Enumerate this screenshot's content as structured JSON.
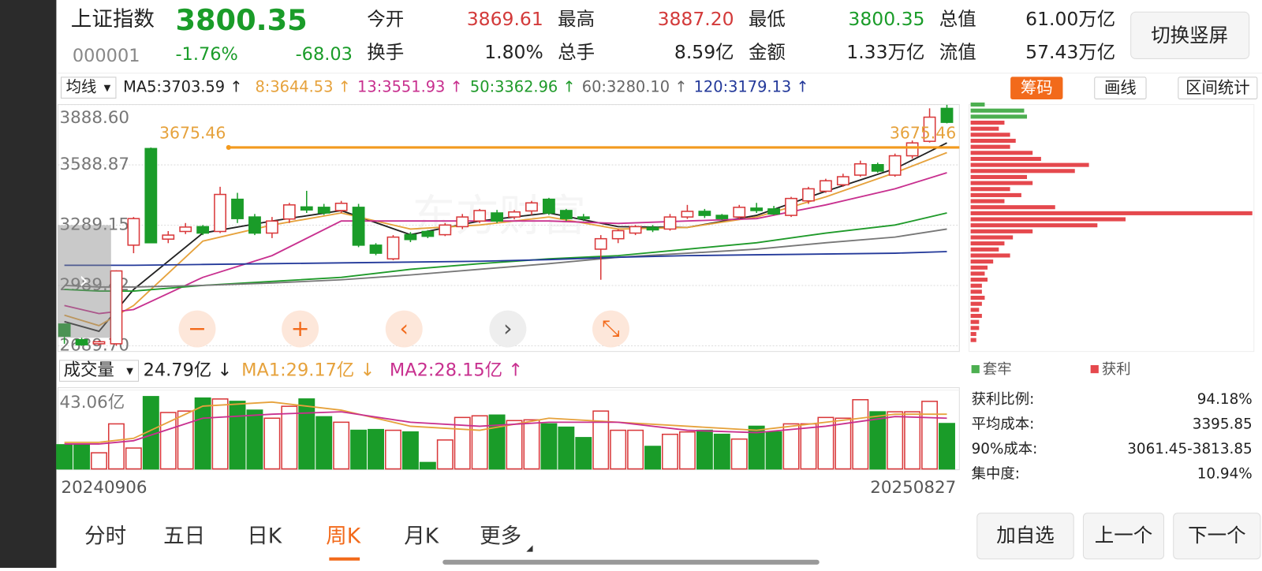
{
  "header": {
    "name": "上证指数",
    "price": "3800.35",
    "code": "000001",
    "change_pct": "-1.76%",
    "change": "-68.03",
    "stats": [
      {
        "label": "今开",
        "value": "3869.61",
        "color": "#d33a3a"
      },
      {
        "label": "最高",
        "value": "3887.20",
        "color": "#d33a3a"
      },
      {
        "label": "最低",
        "value": "3800.35",
        "color": "#1a9c29"
      },
      {
        "label": "总值",
        "value": "61.00万亿",
        "color": "#222"
      },
      {
        "label": "换手",
        "value": "1.80%",
        "color": "#222"
      },
      {
        "label": "总手",
        "value": "8.59亿",
        "color": "#222"
      },
      {
        "label": "金额",
        "value": "1.33万亿",
        "color": "#222"
      },
      {
        "label": "流值",
        "value": "57.43万亿",
        "color": "#222"
      }
    ],
    "button": "切换竖屏"
  },
  "ma_bar": {
    "selector": "均线",
    "items": [
      {
        "text": "MA5:3703.59 ↑",
        "color": "#222"
      },
      {
        "text": "8:3644.53 ↑",
        "color": "#e6a23c"
      },
      {
        "text": "13:3551.93 ↑",
        "color": "#c8308f"
      },
      {
        "text": "50:3362.96 ↑",
        "color": "#1f9a2a"
      },
      {
        "text": "60:3280.10 ↑",
        "color": "#666"
      },
      {
        "text": "120:3179.13 ↑",
        "color": "#23399a"
      }
    ],
    "tabs": [
      "筹码",
      "画线",
      "区间统计"
    ]
  },
  "kline": {
    "watermark": "东方财富",
    "ylim": [
      {
        "value": 2689.7,
        "label": "2689.70"
      },
      {
        "value": 3888.6,
        "label": "3888.60"
      }
    ],
    "yticks": [
      {
        "value": 3888.6,
        "label": "3888.60"
      },
      3588.87,
      3289.15,
      2989.42,
      {
        "value": 2689.7,
        "label": "2689.70"
      }
    ],
    "price_line": 3675.46,
    "up_color": "#d9383a",
    "down_color": "#1a9c29",
    "start_date": "20240906",
    "end_date": "20250827",
    "candles": [
      [
        2798,
        2738,
        2800,
        2700
      ],
      [
        2720,
        2695,
        2730,
        2690
      ],
      [
        2700,
        2710,
        2715,
        2690
      ],
      [
        2700,
        3062,
        3065,
        2690
      ],
      [
        3190,
        3322,
        3330,
        3150
      ],
      [
        3670,
        3202,
        3675,
        3200
      ],
      [
        3220,
        3240,
        3260,
        3200
      ],
      [
        3258,
        3280,
        3300,
        3245
      ],
      [
        3282,
        3250,
        3290,
        3240
      ],
      [
        3258,
        3442,
        3480,
        3250
      ],
      [
        3418,
        3322,
        3450,
        3300
      ],
      [
        3330,
        3250,
        3345,
        3240
      ],
      [
        3250,
        3310,
        3330,
        3225
      ],
      [
        3320,
        3390,
        3400,
        3300
      ],
      [
        3380,
        3365,
        3460,
        3350
      ],
      [
        3378,
        3350,
        3395,
        3340
      ],
      [
        3362,
        3398,
        3410,
        3350
      ],
      [
        3378,
        3190,
        3395,
        3180
      ],
      [
        3190,
        3150,
        3200,
        3140
      ],
      [
        3122,
        3230,
        3240,
        3115
      ],
      [
        3242,
        3218,
        3255,
        3205
      ],
      [
        3258,
        3234,
        3265,
        3225
      ],
      [
        3242,
        3290,
        3300,
        3235
      ],
      [
        3282,
        3330,
        3345,
        3270
      ],
      [
        3310,
        3362,
        3370,
        3300
      ],
      [
        3350,
        3310,
        3365,
        3300
      ],
      [
        3330,
        3355,
        3365,
        3318
      ],
      [
        3360,
        3400,
        3410,
        3340
      ],
      [
        3418,
        3350,
        3425,
        3340
      ],
      [
        3362,
        3322,
        3370,
        3310
      ],
      [
        3330,
        3322,
        3345,
        3310
      ],
      [
        3170,
        3222,
        3240,
        3018
      ],
      [
        3222,
        3262,
        3270,
        3200
      ],
      [
        3250,
        3282,
        3290,
        3240
      ],
      [
        3278,
        3266,
        3290,
        3255
      ],
      [
        3270,
        3330,
        3345,
        3262
      ],
      [
        3330,
        3358,
        3390,
        3320
      ],
      [
        3358,
        3338,
        3370,
        3325
      ],
      [
        3338,
        3322,
        3345,
        3315
      ],
      [
        3330,
        3378,
        3390,
        3320
      ],
      [
        3374,
        3362,
        3400,
        3350
      ],
      [
        3370,
        3345,
        3385,
        3340
      ],
      [
        3338,
        3422,
        3430,
        3330
      ],
      [
        3410,
        3470,
        3480,
        3395
      ],
      [
        3458,
        3510,
        3520,
        3450
      ],
      [
        3490,
        3530,
        3545,
        3480
      ],
      [
        3538,
        3594,
        3610,
        3530
      ],
      [
        3590,
        3558,
        3600,
        3550
      ],
      [
        3538,
        3634,
        3645,
        3530
      ],
      [
        3634,
        3698,
        3710,
        3620
      ],
      [
        3706,
        3826,
        3870,
        3700
      ],
      [
        3869.61,
        3800.35,
        3887.2,
        3795
      ]
    ],
    "ma_lines": [
      {
        "color": "#222",
        "x": [
          0,
          2,
          4,
          8,
          12,
          16,
          20,
          24,
          28,
          32,
          36,
          40,
          44,
          48,
          51
        ],
        "values": [
          2810,
          2762,
          2970,
          3250,
          3310,
          3362,
          3242,
          3310,
          3350,
          3282,
          3278,
          3338,
          3458,
          3570,
          3698
        ]
      },
      {
        "color": "#e6a23c",
        "x": [
          0,
          2,
          4,
          8,
          12,
          16,
          20,
          24,
          28,
          32,
          36,
          40,
          44,
          48,
          51
        ],
        "values": [
          2842,
          2790,
          2890,
          3210,
          3290,
          3350,
          3270,
          3290,
          3330,
          3270,
          3278,
          3330,
          3430,
          3550,
          3650
        ]
      },
      {
        "color": "#c8308f",
        "x": [
          0,
          2,
          4,
          8,
          12,
          16,
          20,
          24,
          28,
          32,
          36,
          40,
          44,
          48,
          51
        ],
        "values": [
          2890,
          2850,
          2870,
          3030,
          3138,
          3310,
          3310,
          3310,
          3310,
          3298,
          3310,
          3322,
          3390,
          3470,
          3550
        ]
      },
      {
        "color": "#1f9a2a",
        "x": [
          0,
          2,
          4,
          8,
          12,
          16,
          20,
          24,
          28,
          32,
          36,
          40,
          44,
          48,
          51
        ],
        "values": [
          2970,
          2962,
          2962,
          2990,
          3010,
          3030,
          3070,
          3098,
          3122,
          3138,
          3170,
          3202,
          3250,
          3290,
          3350
        ]
      },
      {
        "color": "#777",
        "x": [
          0,
          2,
          4,
          8,
          12,
          16,
          20,
          24,
          28,
          32,
          36,
          40,
          44,
          48,
          51
        ],
        "values": [
          2990,
          2982,
          2982,
          2990,
          3002,
          3018,
          3042,
          3070,
          3098,
          3130,
          3150,
          3170,
          3202,
          3230,
          3270
        ]
      },
      {
        "color": "#23399a",
        "x": [
          0,
          2,
          4,
          8,
          12,
          16,
          20,
          24,
          28,
          32,
          36,
          40,
          44,
          48,
          51
        ],
        "values": [
          3090,
          3090,
          3090,
          3094,
          3098,
          3102,
          3106,
          3110,
          3118,
          3130,
          3138,
          3142,
          3146,
          3150,
          3158
        ]
      }
    ]
  },
  "volume": {
    "selector": "成交量",
    "current": "24.79亿 ↓",
    "ma1": "MA1:29.17亿 ↓",
    "ma2": "MA2:28.15亿 ↑",
    "ylim": [
      0,
      {
        "value": 43.06,
        "label": "43.06亿"
      }
    ],
    "yticks": [
      {
        "value": 43.06,
        "label": "43.06亿"
      }
    ],
    "values": [
      13.2,
      13.2,
      8.8,
      24.6,
      11.4,
      39.5,
      30.8,
      31.6,
      38.7,
      38.2,
      36.9,
      32.1,
      27.7,
      34.2,
      38.2,
      28.5,
      25.5,
      21.1,
      21.5,
      21.1,
      20.2,
      3.5,
      15.8,
      28.1,
      29,
      29.4,
      26.4,
      26.8,
      24.6,
      22.8,
      17.1,
      31.6,
      21.1,
      21.1,
      12.3,
      18.9,
      20.2,
      21.1,
      18.9,
      16.3,
      23.3,
      20.2,
      24.6,
      24.6,
      28.1,
      27.7,
      37.8,
      31.2,
      31.2,
      31.2,
      36.9,
      24.79
    ],
    "ma_lines": [
      {
        "color": "#e6a23c",
        "x": [
          0,
          2,
          4,
          8,
          12,
          16,
          20,
          24,
          28,
          32,
          36,
          40,
          44,
          48,
          51
        ],
        "values": [
          14.5,
          14.5,
          16.7,
          34.3,
          36.5,
          32.1,
          23.3,
          21.1,
          27.7,
          25.5,
          23.3,
          21.1,
          25.5,
          29.9,
          29.9
        ]
      },
      {
        "color": "#c8308f",
        "x": [
          0,
          2,
          4,
          8,
          12,
          16,
          20,
          24,
          28,
          32,
          36,
          40,
          44,
          48,
          51
        ],
        "values": [
          13.6,
          13.6,
          15.4,
          27.7,
          29.9,
          31.2,
          25.5,
          23.3,
          25.5,
          25.5,
          21.1,
          19.8,
          23.3,
          28.6,
          27.7
        ]
      }
    ]
  },
  "chips": {
    "levels": [
      3888.6,
      3858.6,
      3828.6,
      3798.6,
      3768.6,
      3738.6,
      3708.6,
      3678.6,
      3648.6,
      3618.6,
      3588.6,
      3558.6,
      3528.6,
      3498.6,
      3468.6,
      3438.6,
      3408.6,
      3378.6,
      3348.6,
      3318.6,
      3288.6,
      3258.6,
      3228.6,
      3198.6,
      3168.6,
      3138.6,
      3108.6,
      3078.6,
      3048.6,
      3018.6,
      2988.6,
      2958.6,
      2928.6,
      2898.6,
      2868.6,
      2838.6,
      2808.6,
      2778.6,
      2748.6,
      2718.6
    ],
    "series": [
      {
        "name": "套牢",
        "color": "#4caf50",
        "values": [
          5,
          19,
          20,
          null,
          null,
          null,
          null,
          null,
          null,
          null,
          null,
          null,
          null,
          null,
          null,
          null,
          null,
          null,
          null,
          null,
          null,
          null,
          null,
          null,
          null,
          null,
          null,
          null,
          null,
          null,
          null,
          null,
          null,
          null,
          null,
          null,
          null,
          null,
          null,
          null
        ]
      },
      {
        "name": "获利",
        "color": "#e5484d",
        "values": [
          null,
          null,
          null,
          12,
          10,
          14,
          16,
          14,
          22,
          25,
          42,
          37,
          20,
          22,
          14,
          18,
          12,
          30,
          100,
          55,
          45,
          22,
          15,
          12,
          10,
          14,
          8,
          6,
          5,
          6,
          4,
          4,
          5,
          4,
          3,
          4,
          3,
          3,
          2,
          2
        ]
      }
    ],
    "stats": [
      {
        "label": "获利比例:",
        "value": "94.18%"
      },
      {
        "label": "平均成本:",
        "value": "3395.85"
      },
      {
        "label": "90%成本:",
        "value": "3061.45-3813.85"
      },
      {
        "label": "集中度:",
        "value": "10.94%"
      }
    ]
  },
  "bottom_tabs": [
    "分时",
    "五日",
    "日K",
    "周K",
    "月K",
    "更多"
  ],
  "active_tab": 3,
  "buttons": [
    "加自选",
    "上一个",
    "下一个"
  ]
}
